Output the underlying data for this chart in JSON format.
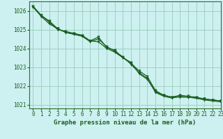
{
  "title": "Graphe pression niveau de la mer (hPa)",
  "background_color": "#cdf0f0",
  "plot_bg_color": "#cdf0f0",
  "grid_color": "#99ccbb",
  "line_color": "#1a5e20",
  "marker_color": "#1a5e20",
  "ylim": [
    1020.8,
    1026.5
  ],
  "xlim": [
    -0.5,
    23
  ],
  "yticks": [
    1021,
    1022,
    1023,
    1024,
    1025,
    1026
  ],
  "xticks": [
    0,
    1,
    2,
    3,
    4,
    5,
    6,
    7,
    8,
    9,
    10,
    11,
    12,
    13,
    14,
    15,
    16,
    17,
    18,
    19,
    20,
    21,
    22,
    23
  ],
  "series": [
    [
      1026.2,
      1025.75,
      1025.45,
      1025.05,
      1024.85,
      1024.75,
      1024.65,
      1024.4,
      1024.35,
      1024.0,
      1023.8,
      1023.5,
      1023.2,
      1022.8,
      1022.5,
      1021.75,
      1021.5,
      1021.4,
      1021.4,
      1021.4,
      1021.35,
      1021.3,
      1021.25,
      1021.2
    ],
    [
      1026.2,
      1025.7,
      1025.3,
      1025.05,
      1024.85,
      1024.75,
      1024.65,
      1024.35,
      1024.5,
      1024.1,
      1023.85,
      1023.55,
      1023.15,
      1022.7,
      1022.4,
      1021.65,
      1021.45,
      1021.35,
      1021.45,
      1021.4,
      1021.35,
      1021.25,
      1021.2,
      1021.15
    ],
    [
      1026.25,
      1025.75,
      1025.4,
      1025.0,
      1024.9,
      1024.8,
      1024.7,
      1024.4,
      1024.6,
      1024.05,
      1023.9,
      1023.5,
      1023.25,
      1022.65,
      1022.35,
      1021.7,
      1021.5,
      1021.4,
      1021.5,
      1021.45,
      1021.4,
      1021.3,
      1021.25,
      1021.2
    ]
  ],
  "title_fontsize": 6.5,
  "tick_fontsize": 5.5,
  "spine_color": "#2d6e2d",
  "figure_width": 3.2,
  "figure_height": 2.0
}
